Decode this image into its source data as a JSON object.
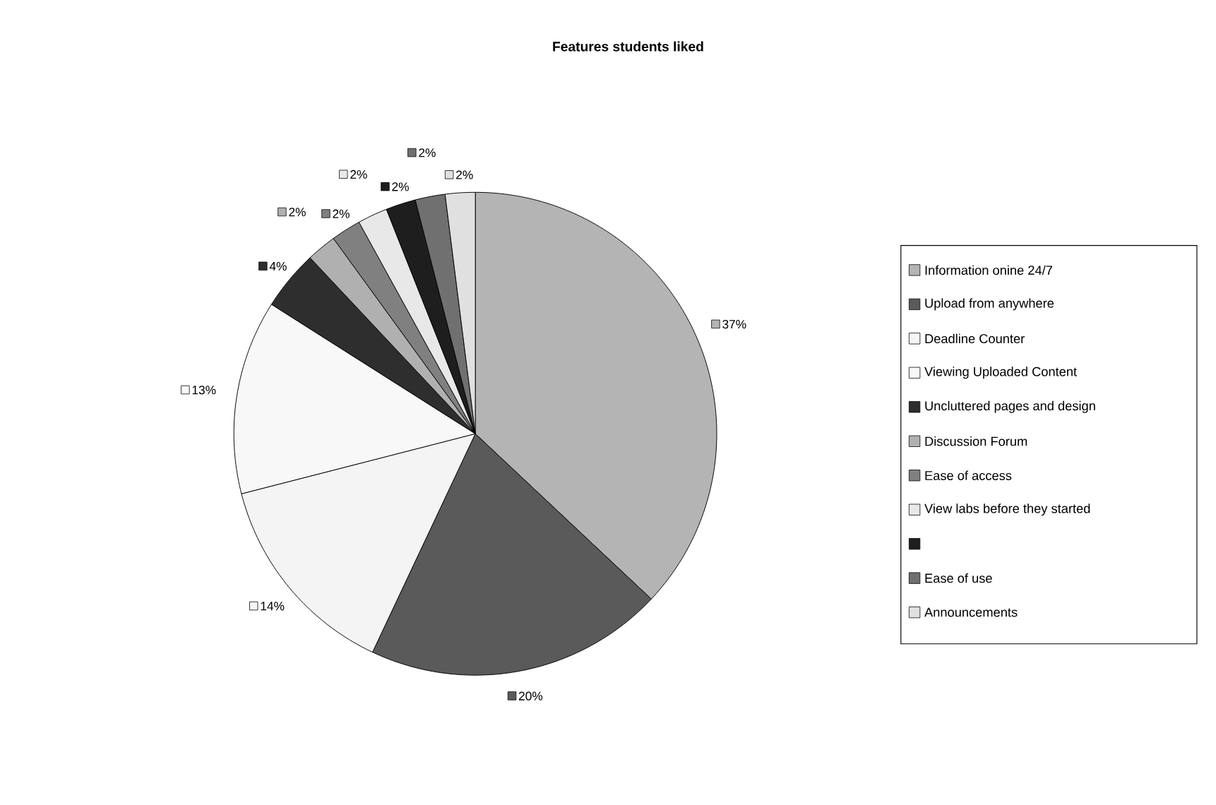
{
  "chart_data": {
    "type": "pie",
    "title": "Features students liked",
    "categories": [
      "Information onine 24/7",
      "Upload from anywhere",
      "Deadline Counter",
      "Viewing Uploaded Content",
      "Uncluttered pages and design",
      "Discussion Forum",
      "Ease of access",
      "View labs before they started",
      null,
      "Ease of use",
      "Announcements"
    ],
    "values": [
      37,
      20,
      14,
      13,
      4,
      2,
      2,
      2,
      2,
      2,
      2
    ],
    "value_labels": [
      "37%",
      "20%",
      "14%",
      "13%",
      "4%",
      "2%",
      "2%",
      "2%",
      "2%",
      "2%",
      "2%"
    ],
    "colors": [
      "#b4b4b4",
      "#5a5a5a",
      "#f4f4f4",
      "#f8f8f8",
      "#2e2e2e",
      "#b0b0b0",
      "#808080",
      "#e8e8e8",
      "#1e1e1e",
      "#707070",
      "#e0e0e0"
    ],
    "legend": "right"
  }
}
